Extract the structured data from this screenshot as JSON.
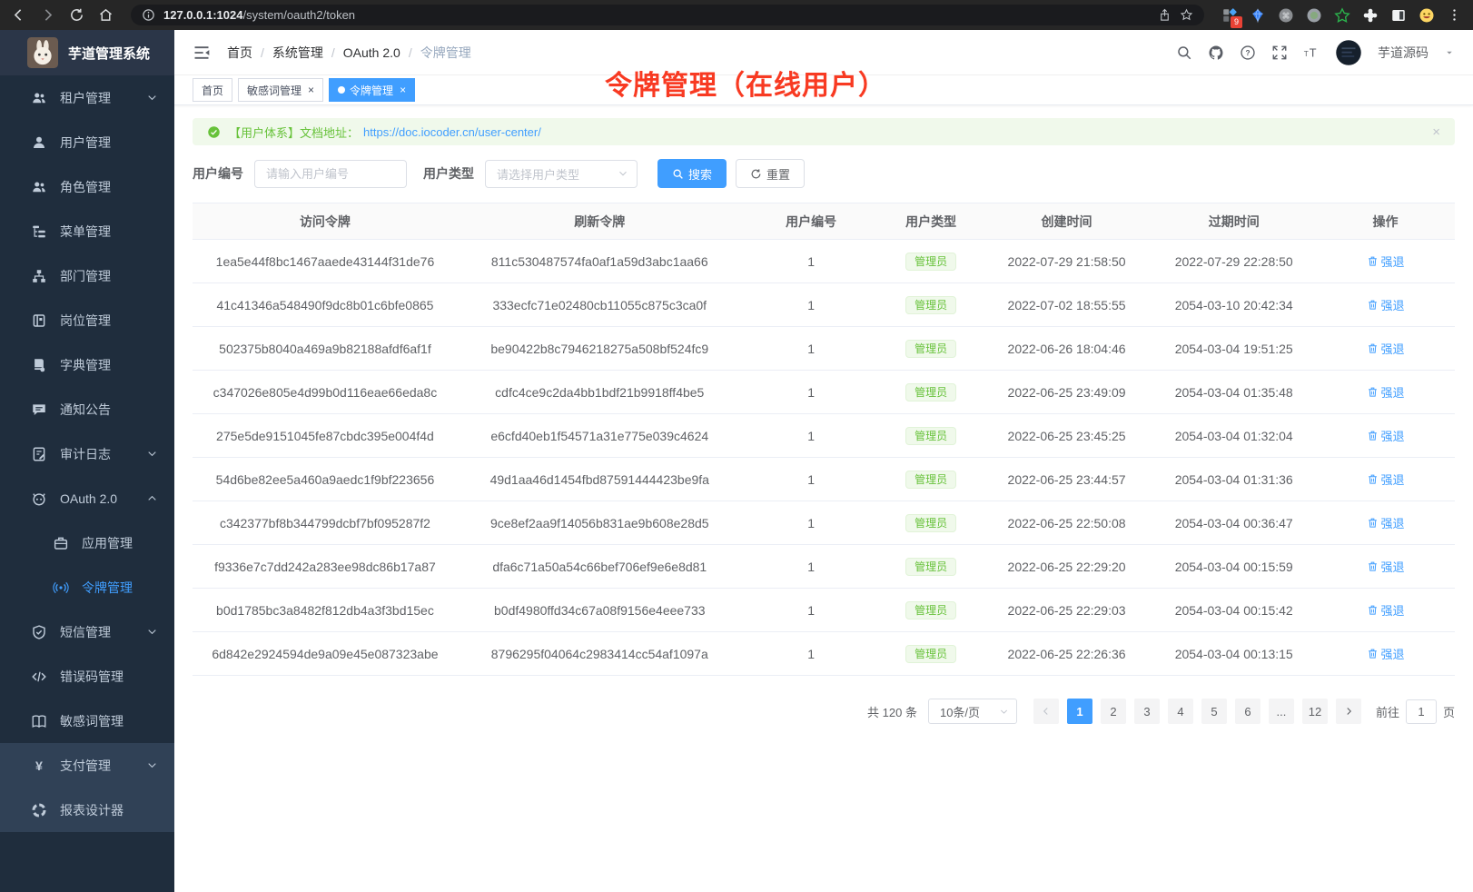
{
  "browser": {
    "url_host": "127.0.0.1:1024",
    "url_path": "/system/oauth2/token",
    "extension_badge": "9"
  },
  "app": {
    "title": "芋道管理系统",
    "overlay_title": "令牌管理（在线用户）"
  },
  "sidebar": {
    "items": [
      {
        "name": "tenant-management",
        "label": "租户管理",
        "icon": "tenant-icon",
        "chevron": "down"
      },
      {
        "name": "user-management",
        "label": "用户管理",
        "icon": "user-icon"
      },
      {
        "name": "role-management",
        "label": "角色管理",
        "icon": "role-icon"
      },
      {
        "name": "menu-management",
        "label": "菜单管理",
        "icon": "menu-tree-icon"
      },
      {
        "name": "dept-management",
        "label": "部门管理",
        "icon": "org-tree-icon"
      },
      {
        "name": "post-management",
        "label": "岗位管理",
        "icon": "post-icon"
      },
      {
        "name": "dict-management",
        "label": "字典管理",
        "icon": "dict-icon"
      },
      {
        "name": "notice-announcement",
        "label": "通知公告",
        "icon": "message-icon"
      },
      {
        "name": "audit-log",
        "label": "审计日志",
        "icon": "audit-icon",
        "chevron": "down"
      },
      {
        "name": "oauth2",
        "label": "OAuth 2.0",
        "icon": "oauth-icon",
        "chevron": "up"
      },
      {
        "name": "app-management",
        "label": "应用管理",
        "icon": "briefcase-icon",
        "indent": true
      },
      {
        "name": "token-management",
        "label": "令牌管理",
        "icon": "broadcast-icon",
        "indent": true,
        "active": true
      },
      {
        "name": "sms-management",
        "label": "短信管理",
        "icon": "shield-icon",
        "chevron": "down"
      },
      {
        "name": "error-code-management",
        "label": "错误码管理",
        "icon": "code-icon"
      },
      {
        "name": "sensitive-word-management",
        "label": "敏感词管理",
        "icon": "book-open-icon"
      },
      {
        "name": "pay-management",
        "label": "支付管理",
        "icon": "yen-icon",
        "chevron": "down",
        "light": true
      },
      {
        "name": "report-designer",
        "label": "报表设计器",
        "icon": "donut-icon",
        "light": true
      }
    ]
  },
  "breadcrumb": {
    "items": [
      "首页",
      "系统管理",
      "OAuth 2.0",
      "令牌管理"
    ]
  },
  "navbar": {
    "username": "芋道源码"
  },
  "tabs": [
    {
      "label": "首页"
    },
    {
      "label": "敏感词管理",
      "closable": true
    },
    {
      "label": "令牌管理",
      "closable": true,
      "active": true
    }
  ],
  "alert": {
    "text": "【用户体系】文档地址：",
    "link": "https://doc.iocoder.cn/user-center/",
    "close_label": "×"
  },
  "filters": {
    "user_id_label": "用户编号",
    "user_id_placeholder": "请输入用户编号",
    "user_type_label": "用户类型",
    "user_type_placeholder": "请选择用户类型",
    "search_label": "搜索",
    "reset_label": "重置"
  },
  "table": {
    "headers": [
      "访问令牌",
      "刷新令牌",
      "用户编号",
      "用户类型",
      "创建时间",
      "过期时间",
      "操作"
    ],
    "action_label": "强退",
    "rows": [
      {
        "access": "1ea5e44f8bc1467aaede43144f31de76",
        "refresh": "811c530487574fa0af1a59d3abc1aa66",
        "user_id": "1",
        "user_type": "管理员",
        "created": "2022-07-29 21:58:50",
        "expires": "2022-07-29 22:28:50"
      },
      {
        "access": "41c41346a548490f9dc8b01c6bfe0865",
        "refresh": "333ecfc71e02480cb11055c875c3ca0f",
        "user_id": "1",
        "user_type": "管理员",
        "created": "2022-07-02 18:55:55",
        "expires": "2054-03-10 20:42:34"
      },
      {
        "access": "502375b8040a469a9b82188afdf6af1f",
        "refresh": "be90422b8c7946218275a508bf524fc9",
        "user_id": "1",
        "user_type": "管理员",
        "created": "2022-06-26 18:04:46",
        "expires": "2054-03-04 19:51:25"
      },
      {
        "access": "c347026e805e4d99b0d116eae66eda8c",
        "refresh": "cdfc4ce9c2da4bb1bdf21b9918ff4be5",
        "user_id": "1",
        "user_type": "管理员",
        "created": "2022-06-25 23:49:09",
        "expires": "2054-03-04 01:35:48"
      },
      {
        "access": "275e5de9151045fe87cbdc395e004f4d",
        "refresh": "e6cfd40eb1f54571a31e775e039c4624",
        "user_id": "1",
        "user_type": "管理员",
        "created": "2022-06-25 23:45:25",
        "expires": "2054-03-04 01:32:04"
      },
      {
        "access": "54d6be82ee5a460a9aedc1f9bf223656",
        "refresh": "49d1aa46d1454fbd87591444423be9fa",
        "user_id": "1",
        "user_type": "管理员",
        "created": "2022-06-25 23:44:57",
        "expires": "2054-03-04 01:31:36"
      },
      {
        "access": "c342377bf8b344799dcbf7bf095287f2",
        "refresh": "9ce8ef2aa9f14056b831ae9b608e28d5",
        "user_id": "1",
        "user_type": "管理员",
        "created": "2022-06-25 22:50:08",
        "expires": "2054-03-04 00:36:47"
      },
      {
        "access": "f9336e7c7dd242a283ee98dc86b17a87",
        "refresh": "dfa6c71a50a54c66bef706ef9e6e8d81",
        "user_id": "1",
        "user_type": "管理员",
        "created": "2022-06-25 22:29:20",
        "expires": "2054-03-04 00:15:59"
      },
      {
        "access": "b0d1785bc3a8482f812db4a3f3bd15ec",
        "refresh": "b0df4980ffd34c67a08f9156e4eee733",
        "user_id": "1",
        "user_type": "管理员",
        "created": "2022-06-25 22:29:03",
        "expires": "2054-03-04 00:15:42"
      },
      {
        "access": "6d842e2924594de9a09e45e087323abe",
        "refresh": "8796295f04064c2983414cc54af1097a",
        "user_id": "1",
        "user_type": "管理员",
        "created": "2022-06-25 22:26:36",
        "expires": "2054-03-04 00:13:15"
      }
    ]
  },
  "pagination": {
    "total_label": "共 120 条",
    "page_size": "10条/页",
    "pages": [
      "1",
      "2",
      "3",
      "4",
      "5",
      "6",
      "...",
      "12"
    ],
    "active_page": "1",
    "goto_label": "前往",
    "goto_value": "1",
    "page_unit": "页"
  },
  "colors": {
    "primary": "#409eff",
    "success": "#67c23a",
    "overlay_red": "#f83a22",
    "sidebar_bg": "#1f2d3d",
    "sidebar_light_bg": "#304156"
  }
}
